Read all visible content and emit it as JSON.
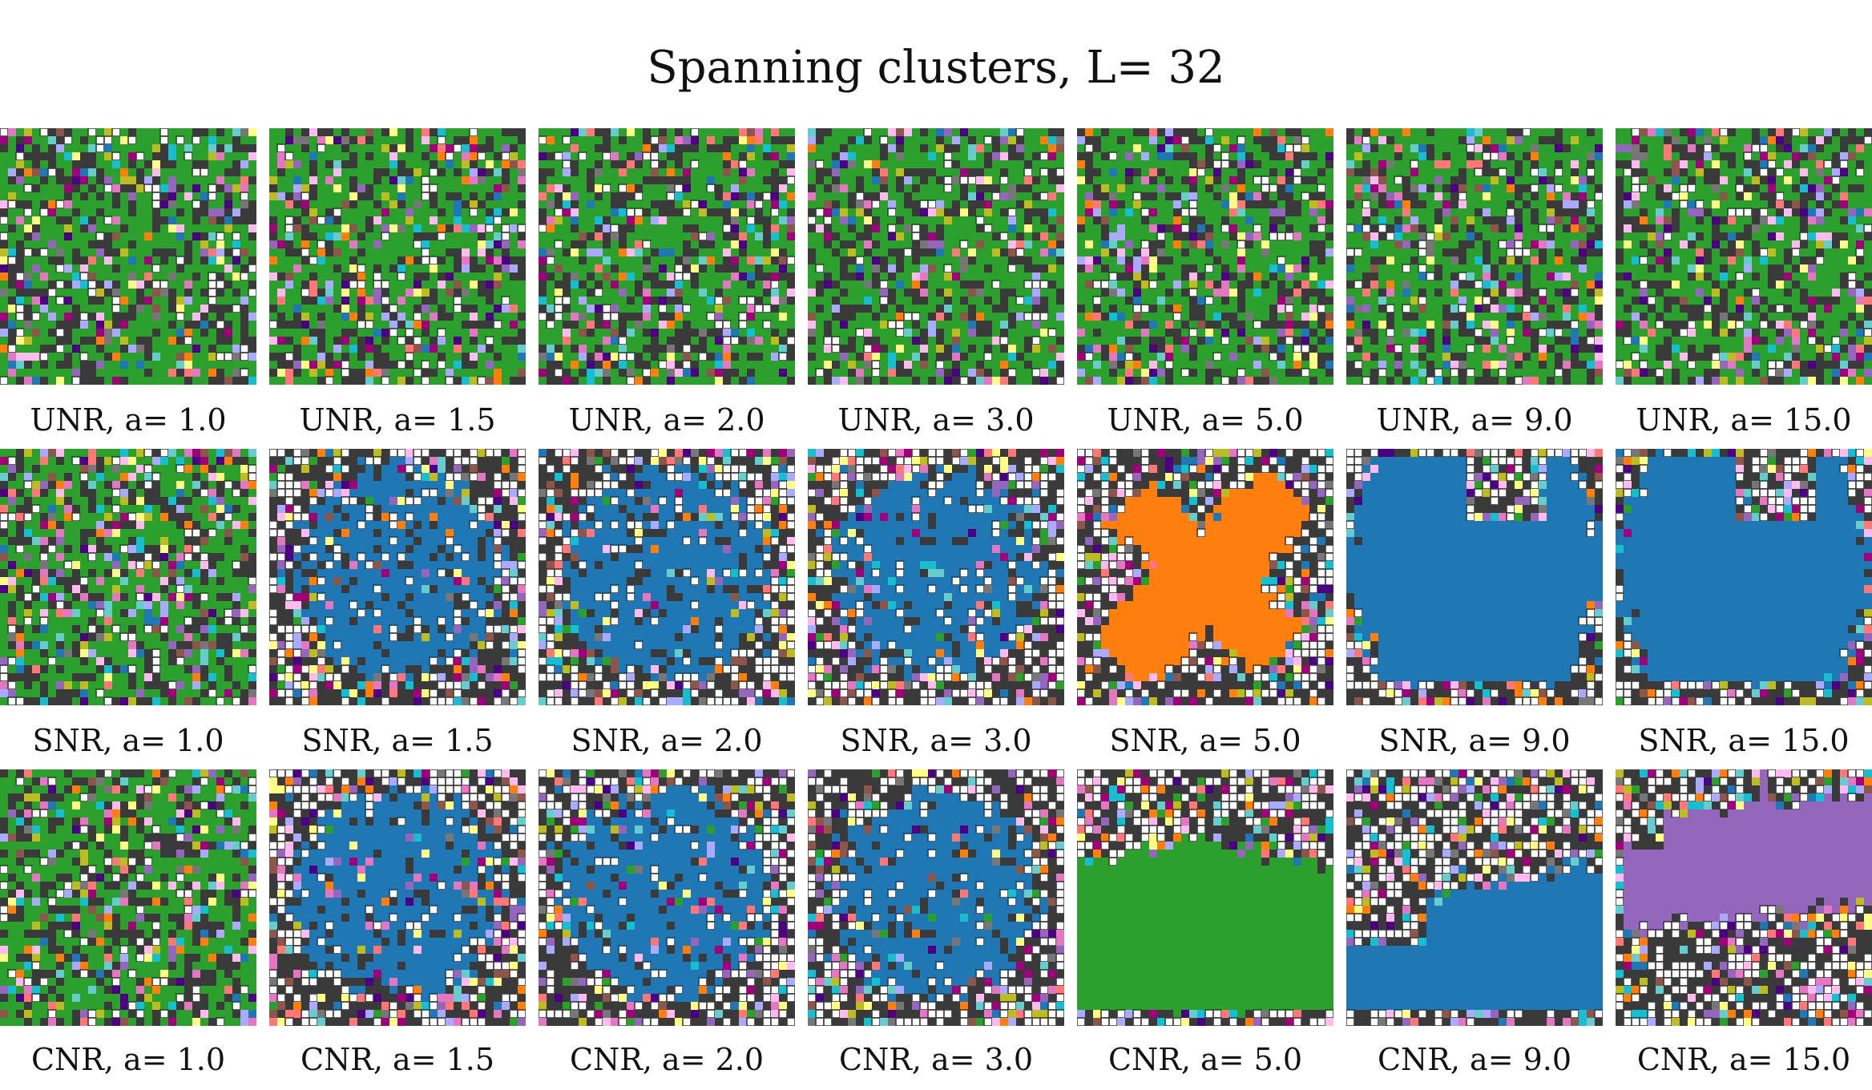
{
  "title": "Spanning clusters, L= 32",
  "lattice_size": 32,
  "colors": {
    "background_cell": "#3a3a3a",
    "empty_cell": "#ffffff",
    "cluster_palette": [
      "#1f77b4",
      "#ff7f0e",
      "#2ca02c",
      "#9467bd",
      "#e377c2",
      "#8c564b",
      "#17becf",
      "#bcbd22",
      "#4b0082",
      "#a0007a",
      "#ff7777",
      "#ffbbee",
      "#aaaaff",
      "#ffff88",
      "#66cccc",
      "#777777"
    ]
  },
  "rows": [
    {
      "model": "UNR",
      "panels": [
        {
          "label": "UNR, a= 1.0",
          "a": 1.0,
          "spanning_color": "#2ca02c",
          "shape": "percolating"
        },
        {
          "label": "UNR, a= 1.5",
          "a": 1.5,
          "spanning_color": "#2ca02c",
          "shape": "percolating"
        },
        {
          "label": "UNR, a= 2.0",
          "a": 2.0,
          "spanning_color": "#2ca02c",
          "shape": "percolating"
        },
        {
          "label": "UNR, a= 3.0",
          "a": 3.0,
          "spanning_color": "#2ca02c",
          "shape": "percolating"
        },
        {
          "label": "UNR, a= 5.0",
          "a": 5.0,
          "spanning_color": "#2ca02c",
          "shape": "percolating"
        },
        {
          "label": "UNR, a= 9.0",
          "a": 9.0,
          "spanning_color": "#2ca02c",
          "shape": "percolating"
        },
        {
          "label": "UNR, a= 15.0",
          "a": 15.0,
          "spanning_color": "#2ca02c",
          "shape": "percolating"
        }
      ]
    },
    {
      "model": "SNR",
      "panels": [
        {
          "label": "SNR, a= 1.0",
          "a": 1.0,
          "spanning_color": "#2ca02c",
          "shape": "percolating"
        },
        {
          "label": "SNR, a= 1.5",
          "a": 1.5,
          "spanning_color": "#1f77b4",
          "shape": "blob"
        },
        {
          "label": "SNR, a= 2.0",
          "a": 2.0,
          "spanning_color": "#1f77b4",
          "shape": "blob"
        },
        {
          "label": "SNR, a= 3.0",
          "a": 3.0,
          "spanning_color": "#1f77b4",
          "shape": "blob"
        },
        {
          "label": "SNR, a= 5.0",
          "a": 5.0,
          "spanning_color": "#ff7f0e",
          "shape": "cross"
        },
        {
          "label": "SNR, a= 9.0",
          "a": 9.0,
          "spanning_color": "#1f77b4",
          "shape": "compact"
        },
        {
          "label": "SNR, a= 15.0",
          "a": 15.0,
          "spanning_color": "#1f77b4",
          "shape": "compact"
        }
      ]
    },
    {
      "model": "CNR",
      "panels": [
        {
          "label": "CNR, a= 1.0",
          "a": 1.0,
          "spanning_color": "#2ca02c",
          "shape": "percolating"
        },
        {
          "label": "CNR, a= 1.5",
          "a": 1.5,
          "spanning_color": "#1f77b4",
          "shape": "blob"
        },
        {
          "label": "CNR, a= 2.0",
          "a": 2.0,
          "spanning_color": "#1f77b4",
          "shape": "blob"
        },
        {
          "label": "CNR, a= 3.0",
          "a": 3.0,
          "spanning_color": "#1f77b4",
          "shape": "blob"
        },
        {
          "label": "CNR, a= 5.0",
          "a": 5.0,
          "spanning_color": "#2ca02c",
          "shape": "bottom"
        },
        {
          "label": "CNR, a= 9.0",
          "a": 9.0,
          "spanning_color": "#1f77b4",
          "shape": "band"
        },
        {
          "label": "CNR, a= 15.0",
          "a": 15.0,
          "spanning_color": "#9467bd",
          "shape": "top"
        }
      ]
    }
  ]
}
